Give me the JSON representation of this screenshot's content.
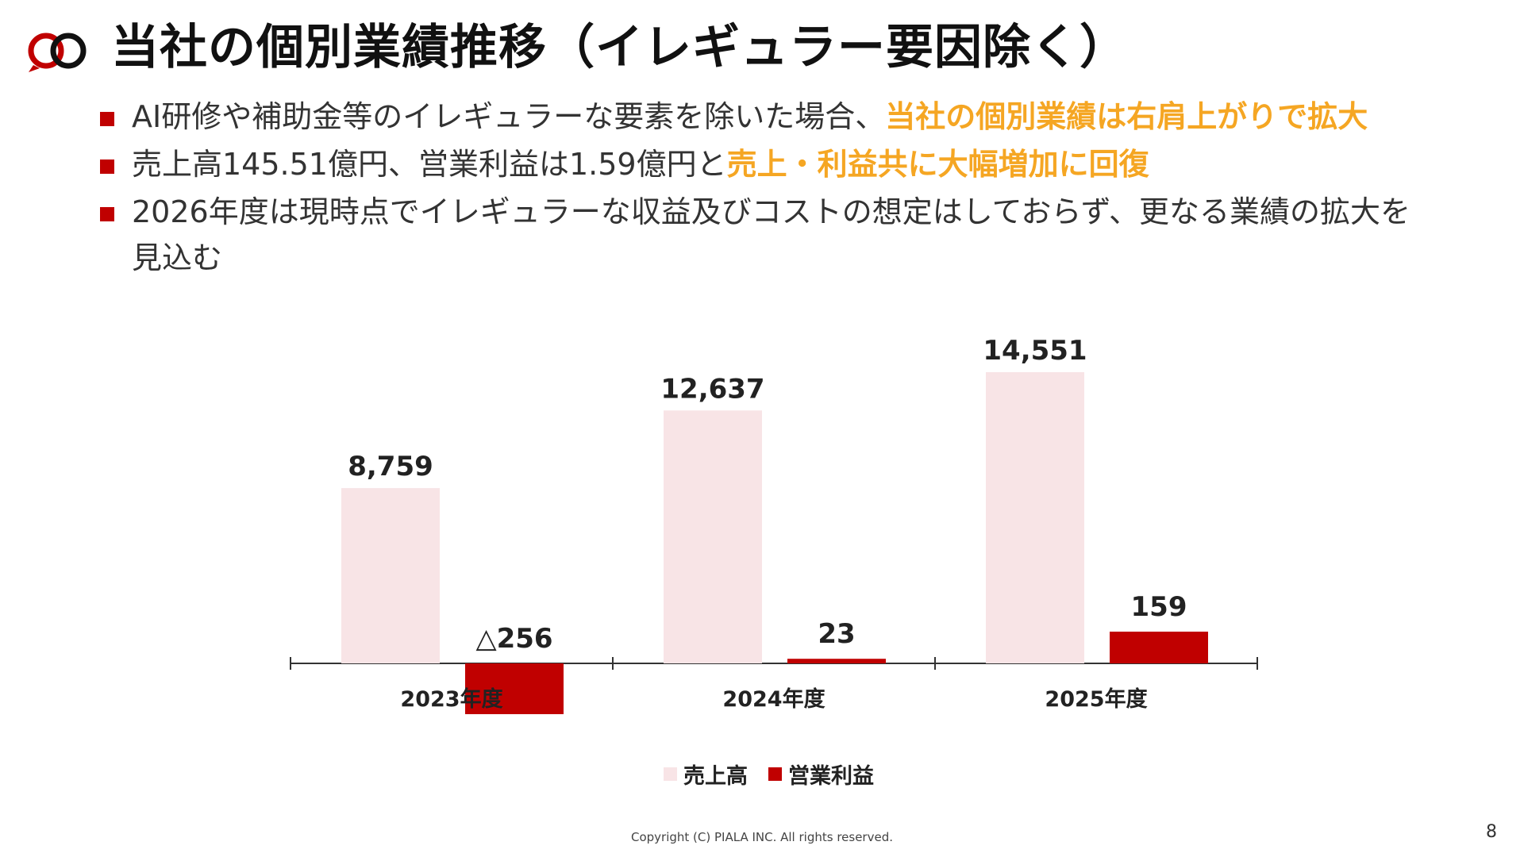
{
  "header": {
    "title": "当社の個別業績推移（イレギュラー要因除く）",
    "logo": "piala-logo-icon"
  },
  "bullets": [
    {
      "text": "AI研修や補助金等のイレギュラーな要素を除いた場合、",
      "highlight": "当社の個別業績は右肩上がりで拡大"
    },
    {
      "text": "売上高145.51億円、営業利益は1.59億円と",
      "highlight": "売上・利益共に大幅増加に回復"
    },
    {
      "text": "2026年度は現時点でイレギュラーな収益及びコストの想定はしておらず、更なる業績の拡大を見込む",
      "highlight": ""
    }
  ],
  "chart_data": {
    "type": "bar",
    "categories": [
      "2023年度",
      "2024年度",
      "2025年度"
    ],
    "series": [
      {
        "name": "売上高",
        "values": [
          8759,
          12637,
          14551
        ],
        "labels": [
          "8,759",
          "12,637",
          "14,551"
        ],
        "color": "#f8e4e6"
      },
      {
        "name": "営業利益",
        "values": [
          -256,
          23,
          159
        ],
        "labels": [
          "△256",
          "23",
          "159"
        ],
        "color": "#c00000"
      }
    ],
    "legend_position": "bottom",
    "grid": false,
    "axis_visible": false
  },
  "colors": {
    "accent": "#c00000",
    "highlight": "#f5a623",
    "sales_bar": "#f8e4e6"
  },
  "footer": {
    "copyright": "Copyright (C) PIALA INC. All rights reserved.",
    "page_number": "8"
  }
}
